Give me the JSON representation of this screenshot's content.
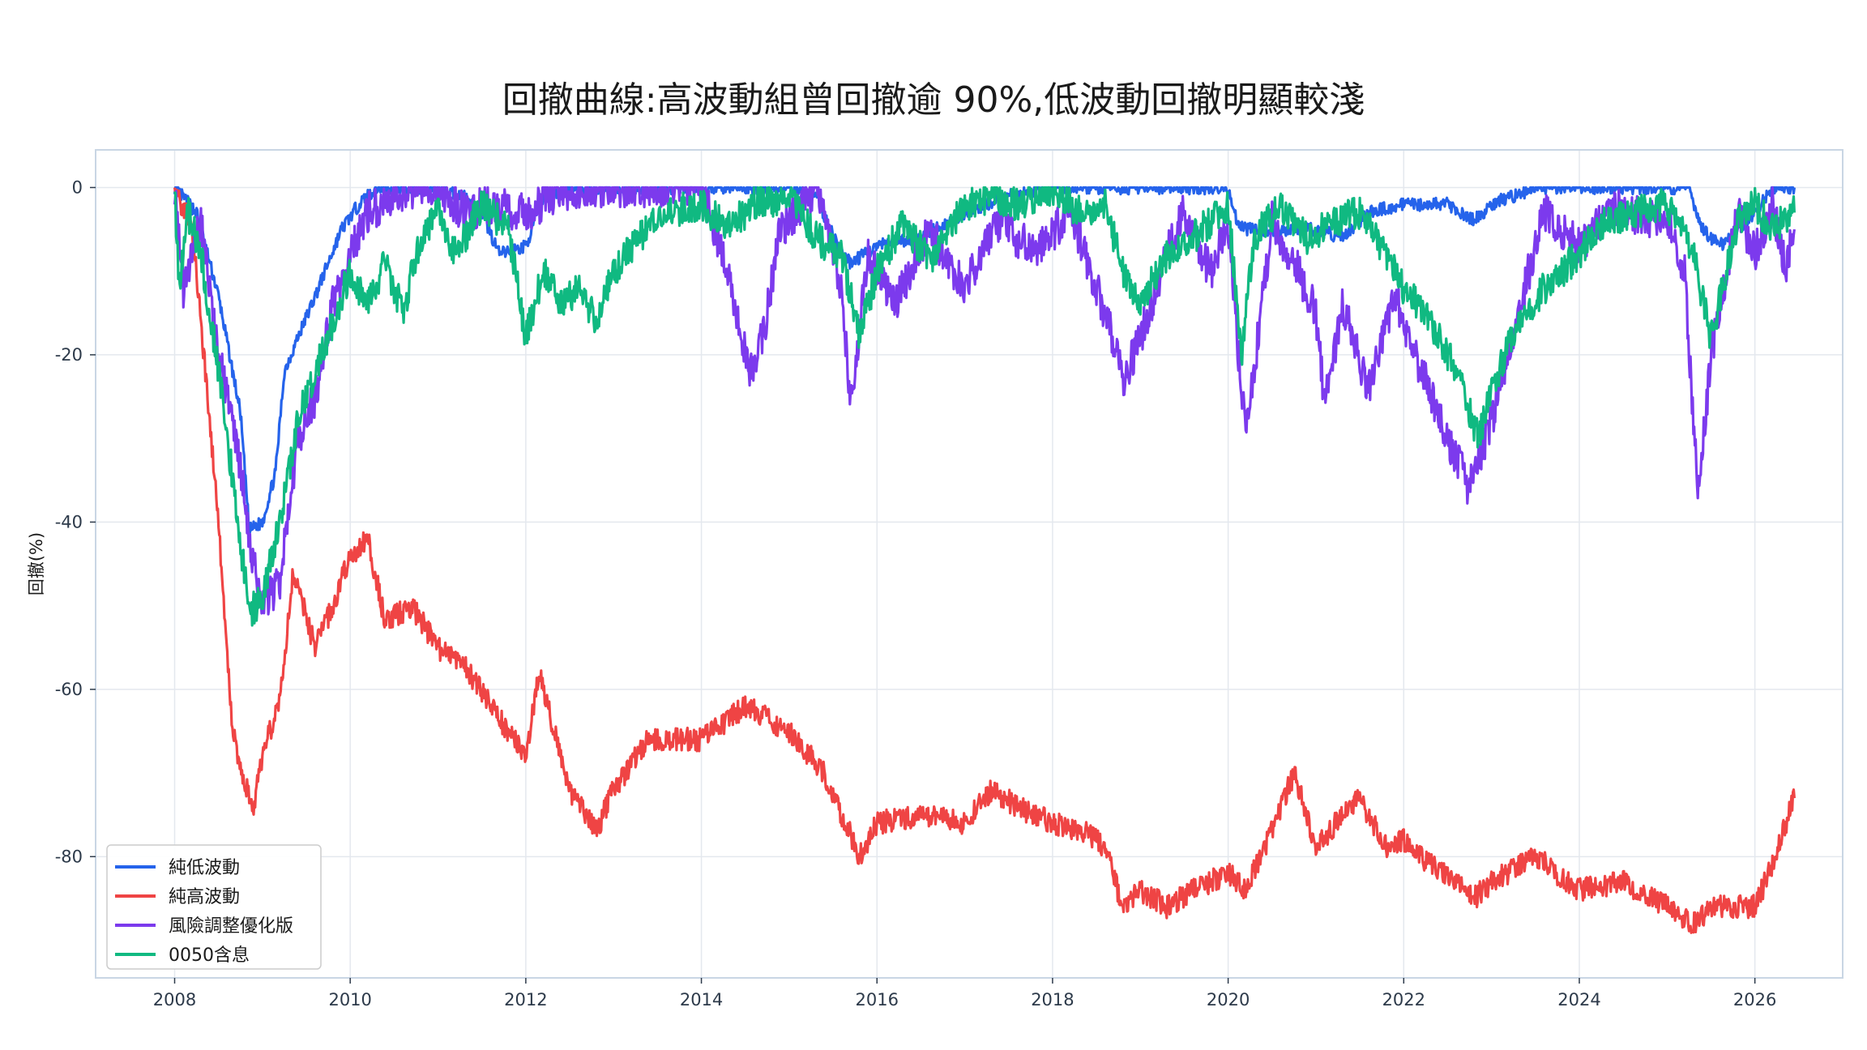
{
  "chart_data": {
    "type": "line",
    "title": "回撤曲線:高波動組曾回撤逾 90%,低波動回撤明顯較淺",
    "xlabel": "",
    "ylabel": "回撤(%)",
    "xlim": [
      2007.1,
      2027.0
    ],
    "ylim": [
      -94.5,
      4.5
    ],
    "x_ticks": [
      "2008",
      "2010",
      "2012",
      "2014",
      "2016",
      "2018",
      "2020",
      "2022",
      "2024",
      "2026"
    ],
    "y_ticks": [
      0,
      -20,
      -40,
      -60,
      -80
    ],
    "grid": true,
    "legend_position": "bottom-left",
    "series": [
      {
        "name": "純低波動",
        "color": "#2563eb",
        "x": [
          2008.0,
          2008.25,
          2008.5,
          2008.75,
          2008.85,
          2009.0,
          2009.15,
          2009.25,
          2009.4,
          2009.6,
          2009.9,
          2010.1,
          2010.3,
          2010.6,
          2011.0,
          2011.3,
          2011.5,
          2011.7,
          2012.0,
          2012.2,
          2012.5,
          2013.0,
          2013.5,
          2014.0,
          2014.5,
          2015.0,
          2015.3,
          2015.6,
          2015.7,
          2016.0,
          2016.5,
          2017.0,
          2017.5,
          2018.0,
          2018.5,
          2019.0,
          2019.5,
          2020.0,
          2020.1,
          2020.2,
          2020.5,
          2021.0,
          2021.3,
          2021.6,
          2022.0,
          2022.5,
          2022.8,
          2023.0,
          2023.5,
          2024.0,
          2024.5,
          2025.0,
          2025.25,
          2025.4,
          2025.6,
          2026.0,
          2026.2,
          2026.45
        ],
        "y": [
          0,
          -3,
          -13,
          -27,
          -41,
          -40,
          -34,
          -22,
          -18,
          -13,
          -5,
          -2,
          0,
          0,
          0,
          -1,
          -3,
          -8,
          -7,
          -1,
          0,
          0,
          0,
          0,
          0,
          0,
          -1,
          -8,
          -9,
          -7,
          -6,
          -3,
          -1,
          0,
          0,
          0,
          0,
          0,
          -4,
          -5,
          -5,
          -5,
          -6,
          -3,
          -2,
          -2,
          -4,
          -2,
          0,
          0,
          0,
          0,
          0,
          -5,
          -7,
          -3,
          0,
          0
        ]
      },
      {
        "name": "純高波動",
        "color": "#ef4444",
        "x": [
          2008.0,
          2008.2,
          2008.35,
          2008.5,
          2008.65,
          2008.75,
          2008.9,
          2009.0,
          2009.2,
          2009.35,
          2009.6,
          2009.8,
          2010.0,
          2010.2,
          2010.4,
          2010.7,
          2011.0,
          2011.3,
          2011.6,
          2012.0,
          2012.15,
          2012.5,
          2012.8,
          2013.0,
          2013.4,
          2014.0,
          2014.5,
          2015.0,
          2015.4,
          2015.6,
          2015.8,
          2016.0,
          2016.5,
          2017.0,
          2017.3,
          2017.6,
          2018.0,
          2018.4,
          2018.6,
          2018.8,
          2019.0,
          2019.3,
          2019.6,
          2020.0,
          2020.2,
          2020.5,
          2020.75,
          2021.0,
          2021.3,
          2021.5,
          2021.8,
          2022.0,
          2022.3,
          2022.6,
          2022.8,
          2023.0,
          2023.5,
          2024.0,
          2024.5,
          2025.0,
          2025.3,
          2025.5,
          2026.0,
          2026.2,
          2026.35,
          2026.45
        ],
        "y": [
          0,
          -5,
          -22,
          -40,
          -64,
          -70,
          -74,
          -68,
          -61,
          -46,
          -55,
          -50,
          -44,
          -42,
          -52,
          -50,
          -55,
          -57,
          -62,
          -68,
          -58,
          -72,
          -77,
          -72,
          -66,
          -66,
          -62,
          -65,
          -70,
          -75,
          -80,
          -76,
          -75,
          -76,
          -72,
          -74,
          -76,
          -77,
          -79,
          -86,
          -84,
          -86,
          -84,
          -82,
          -84,
          -77,
          -70,
          -79,
          -75,
          -73,
          -79,
          -78,
          -81,
          -83,
          -85,
          -83,
          -80,
          -84,
          -83,
          -86,
          -88,
          -86,
          -86,
          -81,
          -76,
          -73
        ]
      },
      {
        "name": "風險調整優化版",
        "color": "#7c3aed",
        "x": [
          2008.0,
          2008.1,
          2008.3,
          2008.5,
          2008.7,
          2008.9,
          2009.0,
          2009.2,
          2009.4,
          2009.6,
          2009.8,
          2010.0,
          2010.2,
          2010.5,
          2010.8,
          2011.0,
          2011.3,
          2011.6,
          2012.0,
          2012.3,
          2012.6,
          2013.0,
          2013.5,
          2014.0,
          2014.3,
          2014.55,
          2014.7,
          2014.9,
          2015.3,
          2015.6,
          2015.7,
          2015.9,
          2016.2,
          2016.6,
          2017.0,
          2017.4,
          2017.8,
          2018.2,
          2018.6,
          2018.8,
          2019.0,
          2019.3,
          2019.5,
          2019.8,
          2020.0,
          2020.2,
          2020.5,
          2020.8,
          2021.0,
          2021.1,
          2021.3,
          2021.6,
          2021.9,
          2022.2,
          2022.5,
          2022.75,
          2022.85,
          2023.0,
          2023.3,
          2023.6,
          2024.0,
          2024.4,
          2024.8,
          2025.0,
          2025.2,
          2025.35,
          2025.5,
          2025.8,
          2026.0,
          2026.2,
          2026.35,
          2026.45
        ],
        "y": [
          0,
          -12,
          -4,
          -20,
          -30,
          -45,
          -50,
          -47,
          -30,
          -25,
          -14,
          -8,
          -3,
          -1,
          0,
          0,
          -3,
          -2,
          -3,
          -1,
          0,
          0,
          0,
          0,
          -10,
          -22,
          -18,
          -5,
          0,
          -12,
          -26,
          -8,
          -14,
          -5,
          -12,
          -4,
          -8,
          -3,
          -15,
          -23,
          -18,
          -8,
          -3,
          -10,
          -5,
          -30,
          -4,
          -10,
          -15,
          -26,
          -14,
          -24,
          -13,
          -22,
          -30,
          -36,
          -33,
          -28,
          -15,
          -3,
          -7,
          -2,
          -4,
          -3,
          -10,
          -37,
          -20,
          -3,
          -8,
          -2,
          -10,
          -5
        ]
      },
      {
        "name": "0050含息",
        "color": "#10b981",
        "x": [
          2008.0,
          2008.05,
          2008.15,
          2008.3,
          2008.5,
          2008.7,
          2008.85,
          2009.0,
          2009.2,
          2009.4,
          2009.6,
          2009.8,
          2010.0,
          2010.2,
          2010.4,
          2010.6,
          2010.8,
          2011.0,
          2011.2,
          2011.5,
          2011.8,
          2012.0,
          2012.2,
          2012.4,
          2012.6,
          2012.8,
          2013.0,
          2013.3,
          2013.6,
          2014.0,
          2014.3,
          2014.6,
          2015.0,
          2015.3,
          2015.6,
          2015.8,
          2016.0,
          2016.3,
          2016.6,
          2017.0,
          2017.3,
          2017.6,
          2018.0,
          2018.3,
          2018.6,
          2018.8,
          2019.0,
          2019.3,
          2019.6,
          2020.0,
          2020.15,
          2020.3,
          2020.6,
          2020.9,
          2021.2,
          2021.5,
          2021.8,
          2022.0,
          2022.3,
          2022.6,
          2022.85,
          2023.0,
          2023.3,
          2023.6,
          2024.0,
          2024.3,
          2024.6,
          2025.0,
          2025.3,
          2025.5,
          2025.8,
          2026.0,
          2026.2,
          2026.45
        ],
        "y": [
          0,
          -12,
          -3,
          -8,
          -22,
          -38,
          -51,
          -49,
          -40,
          -28,
          -22,
          -16,
          -10,
          -14,
          -9,
          -15,
          -6,
          -3,
          -8,
          -2,
          -5,
          -18,
          -10,
          -14,
          -12,
          -16,
          -10,
          -6,
          -3,
          -2,
          -5,
          -2,
          -1,
          -6,
          -8,
          -18,
          -10,
          -4,
          -9,
          -2,
          -1,
          -2,
          0,
          -3,
          -2,
          -10,
          -14,
          -8,
          -6,
          -2,
          -20,
          -6,
          -2,
          -6,
          -4,
          -3,
          -8,
          -12,
          -16,
          -22,
          -30,
          -24,
          -16,
          -12,
          -8,
          -4,
          -3,
          -2,
          -8,
          -18,
          -4,
          -2,
          -5,
          -3
        ]
      }
    ]
  }
}
